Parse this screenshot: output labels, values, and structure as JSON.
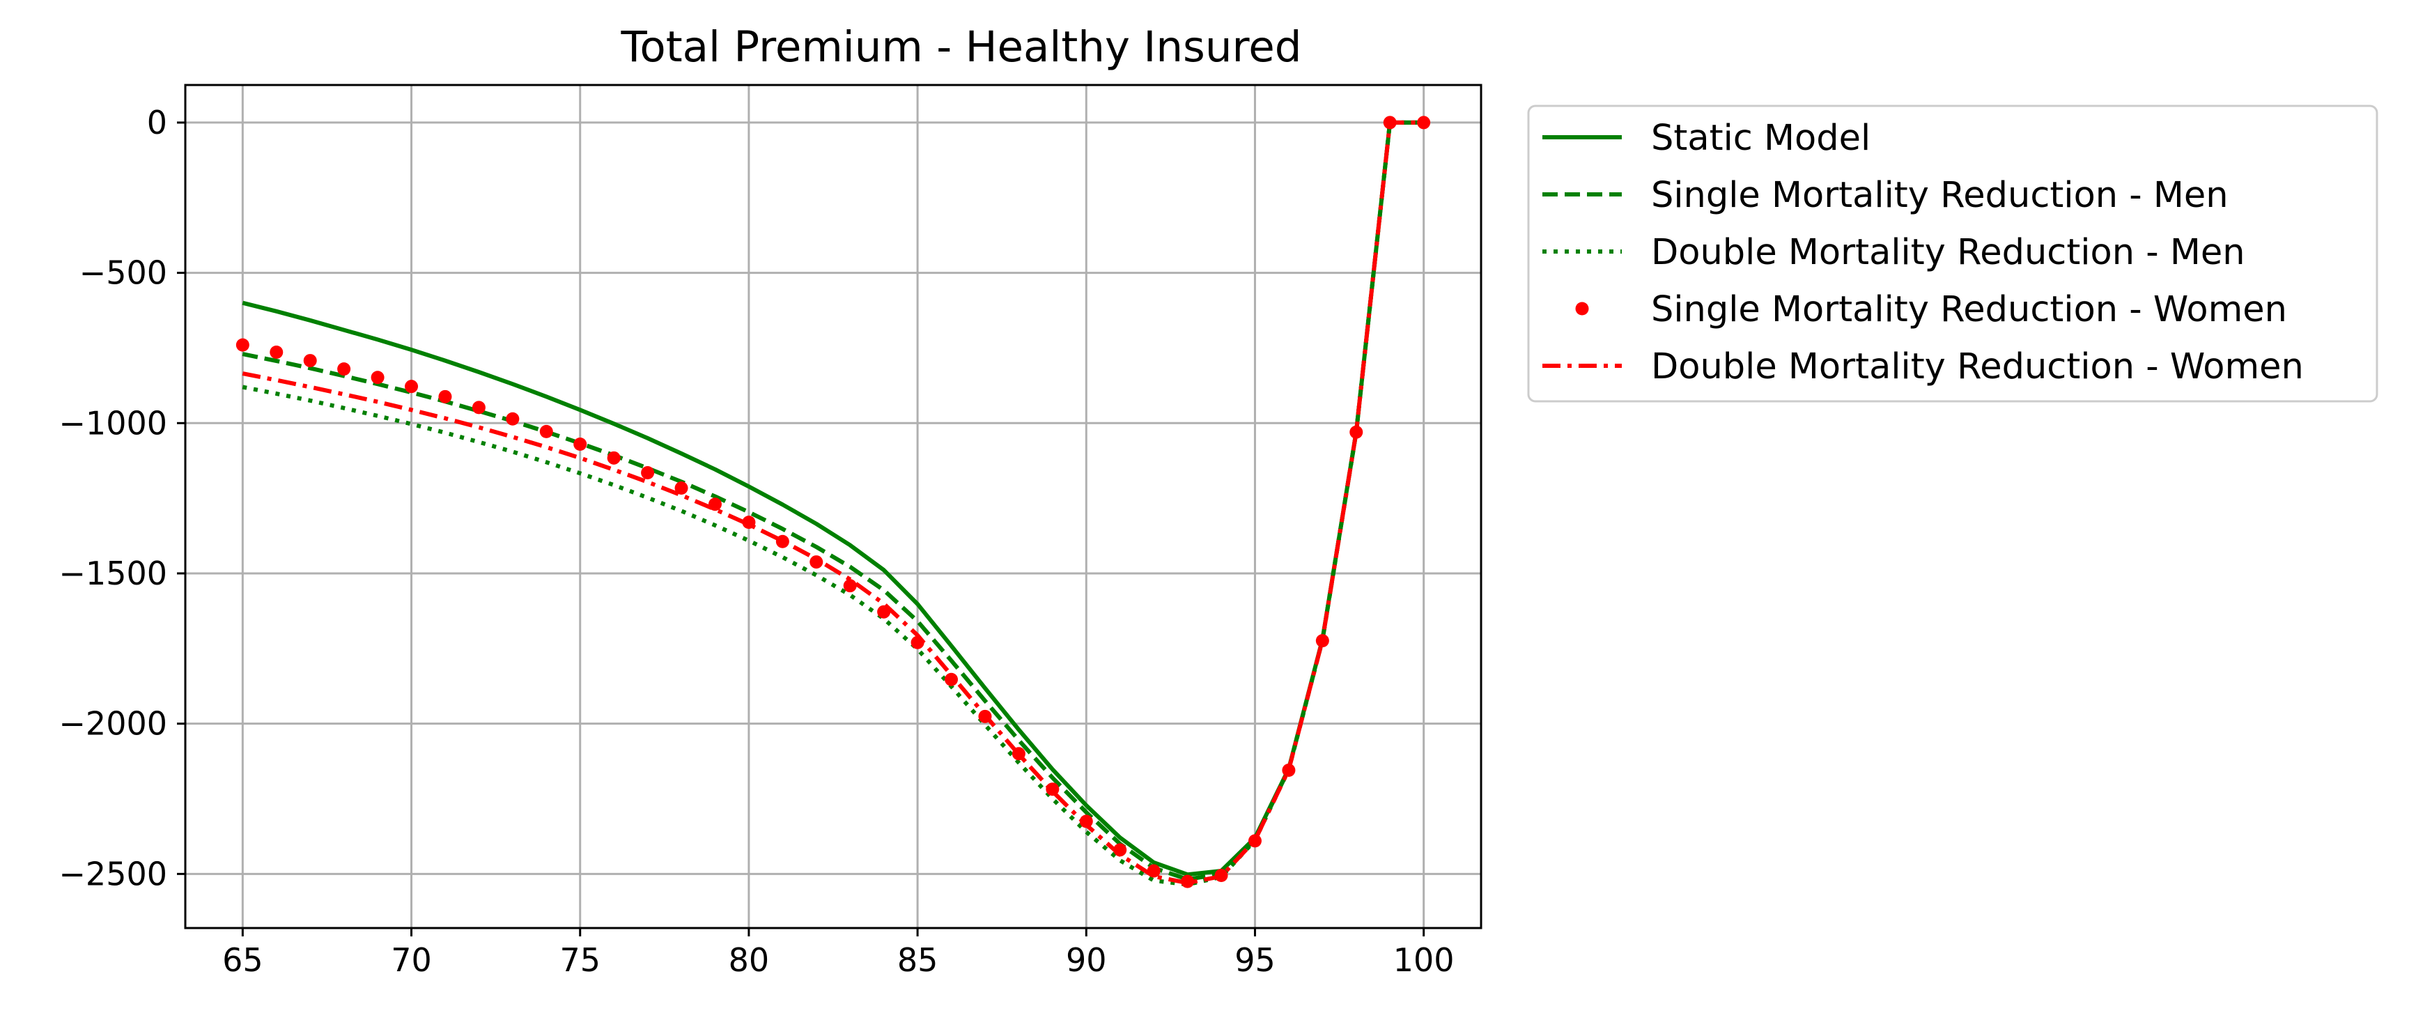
{
  "chart_data": {
    "type": "line",
    "title": "Total Premium - Healthy Insured",
    "xlabel": "",
    "ylabel": "",
    "xlim": [
      63.3,
      101.7
    ],
    "ylim": [
      -2680,
      125
    ],
    "x_ticks": [
      65,
      70,
      75,
      80,
      85,
      90,
      95,
      100
    ],
    "y_ticks": [
      0,
      -500,
      -1000,
      -1500,
      -2000,
      -2500
    ],
    "x_tick_labels": [
      "65",
      "70",
      "75",
      "80",
      "85",
      "90",
      "95",
      "100"
    ],
    "y_tick_labels": [
      "0",
      "−500",
      "−1000",
      "−1500",
      "−2000",
      "−2500"
    ],
    "grid": true,
    "legend_position": "outside upper-right",
    "x": [
      65,
      66,
      67,
      68,
      69,
      70,
      71,
      72,
      73,
      74,
      75,
      76,
      77,
      78,
      79,
      80,
      81,
      82,
      83,
      84,
      85,
      86,
      87,
      88,
      89,
      90,
      91,
      92,
      93,
      94,
      95,
      96,
      97,
      98,
      99,
      100
    ],
    "series": [
      {
        "name": "Static Model",
        "color": "#008000",
        "style": "solid",
        "values": [
          -600,
          -628,
          -658,
          -690,
          -722,
          -756,
          -792,
          -830,
          -870,
          -912,
          -956,
          -1002,
          -1050,
          -1101,
          -1154,
          -1211,
          -1271,
          -1335,
          -1406,
          -1489,
          -1602,
          -1741,
          -1882,
          -2020,
          -2152,
          -2272,
          -2379,
          -2462,
          -2502,
          -2490,
          -2380,
          -2150,
          -1720,
          -1030,
          0,
          0
        ]
      },
      {
        "name": "Single Mortality Reduction - Men",
        "color": "#008000",
        "style": "dashed",
        "values": [
          -770,
          -793,
          -817,
          -843,
          -870,
          -898,
          -928,
          -960,
          -993,
          -1029,
          -1067,
          -1107,
          -1150,
          -1195,
          -1244,
          -1296,
          -1352,
          -1412,
          -1478,
          -1556,
          -1659,
          -1790,
          -1924,
          -2055,
          -2180,
          -2295,
          -2400,
          -2480,
          -2518,
          -2500,
          -2385,
          -2152,
          -1722,
          -1030,
          0,
          0
        ]
      },
      {
        "name": "Double Mortality Reduction - Men",
        "color": "#008000",
        "style": "dotted",
        "values": [
          -880,
          -902,
          -925,
          -950,
          -976,
          -1003,
          -1032,
          -1063,
          -1095,
          -1130,
          -1167,
          -1206,
          -1248,
          -1292,
          -1340,
          -1391,
          -1446,
          -1506,
          -1572,
          -1651,
          -1752,
          -1876,
          -2004,
          -2130,
          -2250,
          -2360,
          -2455,
          -2522,
          -2535,
          -2510,
          -2388,
          -2153,
          -1722,
          -1030,
          0,
          0
        ]
      },
      {
        "name": "Single Mortality Reduction - Women",
        "color": "#ff0000",
        "style": "points",
        "values": [
          -740,
          -764,
          -792,
          -820,
          -848,
          -878,
          -912,
          -948,
          -986,
          -1028,
          -1070,
          -1116,
          -1165,
          -1216,
          -1270,
          -1330,
          -1394,
          -1462,
          -1541,
          -1628,
          -1730,
          -1853,
          -1976,
          -2100,
          -2218,
          -2325,
          -2420,
          -2490,
          -2525,
          -2505,
          -2390,
          -2155,
          -1724,
          -1030,
          0,
          0
        ]
      },
      {
        "name": "Double Mortality Reduction - Women",
        "color": "#ff0000",
        "style": "dashdot",
        "values": [
          -835,
          -857,
          -880,
          -904,
          -929,
          -956,
          -984,
          -1014,
          -1046,
          -1080,
          -1116,
          -1155,
          -1196,
          -1240,
          -1287,
          -1337,
          -1392,
          -1452,
          -1520,
          -1601,
          -1706,
          -1838,
          -1972,
          -2102,
          -2225,
          -2337,
          -2436,
          -2508,
          -2530,
          -2508,
          -2388,
          -2153,
          -1722,
          -1030,
          0,
          0
        ]
      }
    ]
  }
}
